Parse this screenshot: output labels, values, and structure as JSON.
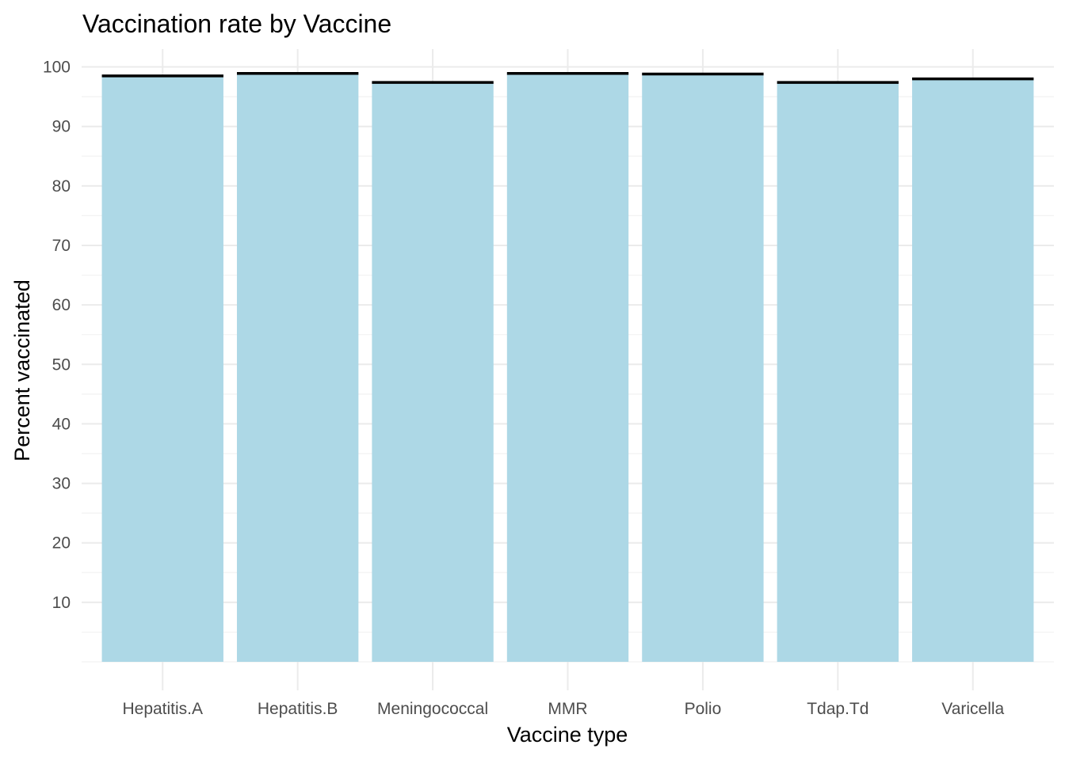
{
  "chart_data": {
    "type": "bar",
    "title": "Vaccination rate by Vaccine",
    "xlabel": "Vaccine type",
    "ylabel": "Percent vaccinated",
    "categories": [
      "Hepatitis.A",
      "Hepatitis.B",
      "Meningococcal",
      "MMR",
      "Polio",
      "Tdap.Td",
      "Varicella"
    ],
    "values": [
      98.3,
      98.8,
      97.2,
      98.9,
      98.7,
      97.3,
      97.9
    ],
    "reference_lines": [
      98.5,
      98.9,
      97.4,
      98.9,
      98.8,
      97.4,
      98.0
    ],
    "ylim": [
      0,
      103
    ],
    "y_ticks": [
      10,
      20,
      30,
      40,
      50,
      60,
      70,
      80,
      90,
      100
    ],
    "grid": true,
    "bar_color": "#add8e6",
    "reference_line_color": "#000000"
  }
}
